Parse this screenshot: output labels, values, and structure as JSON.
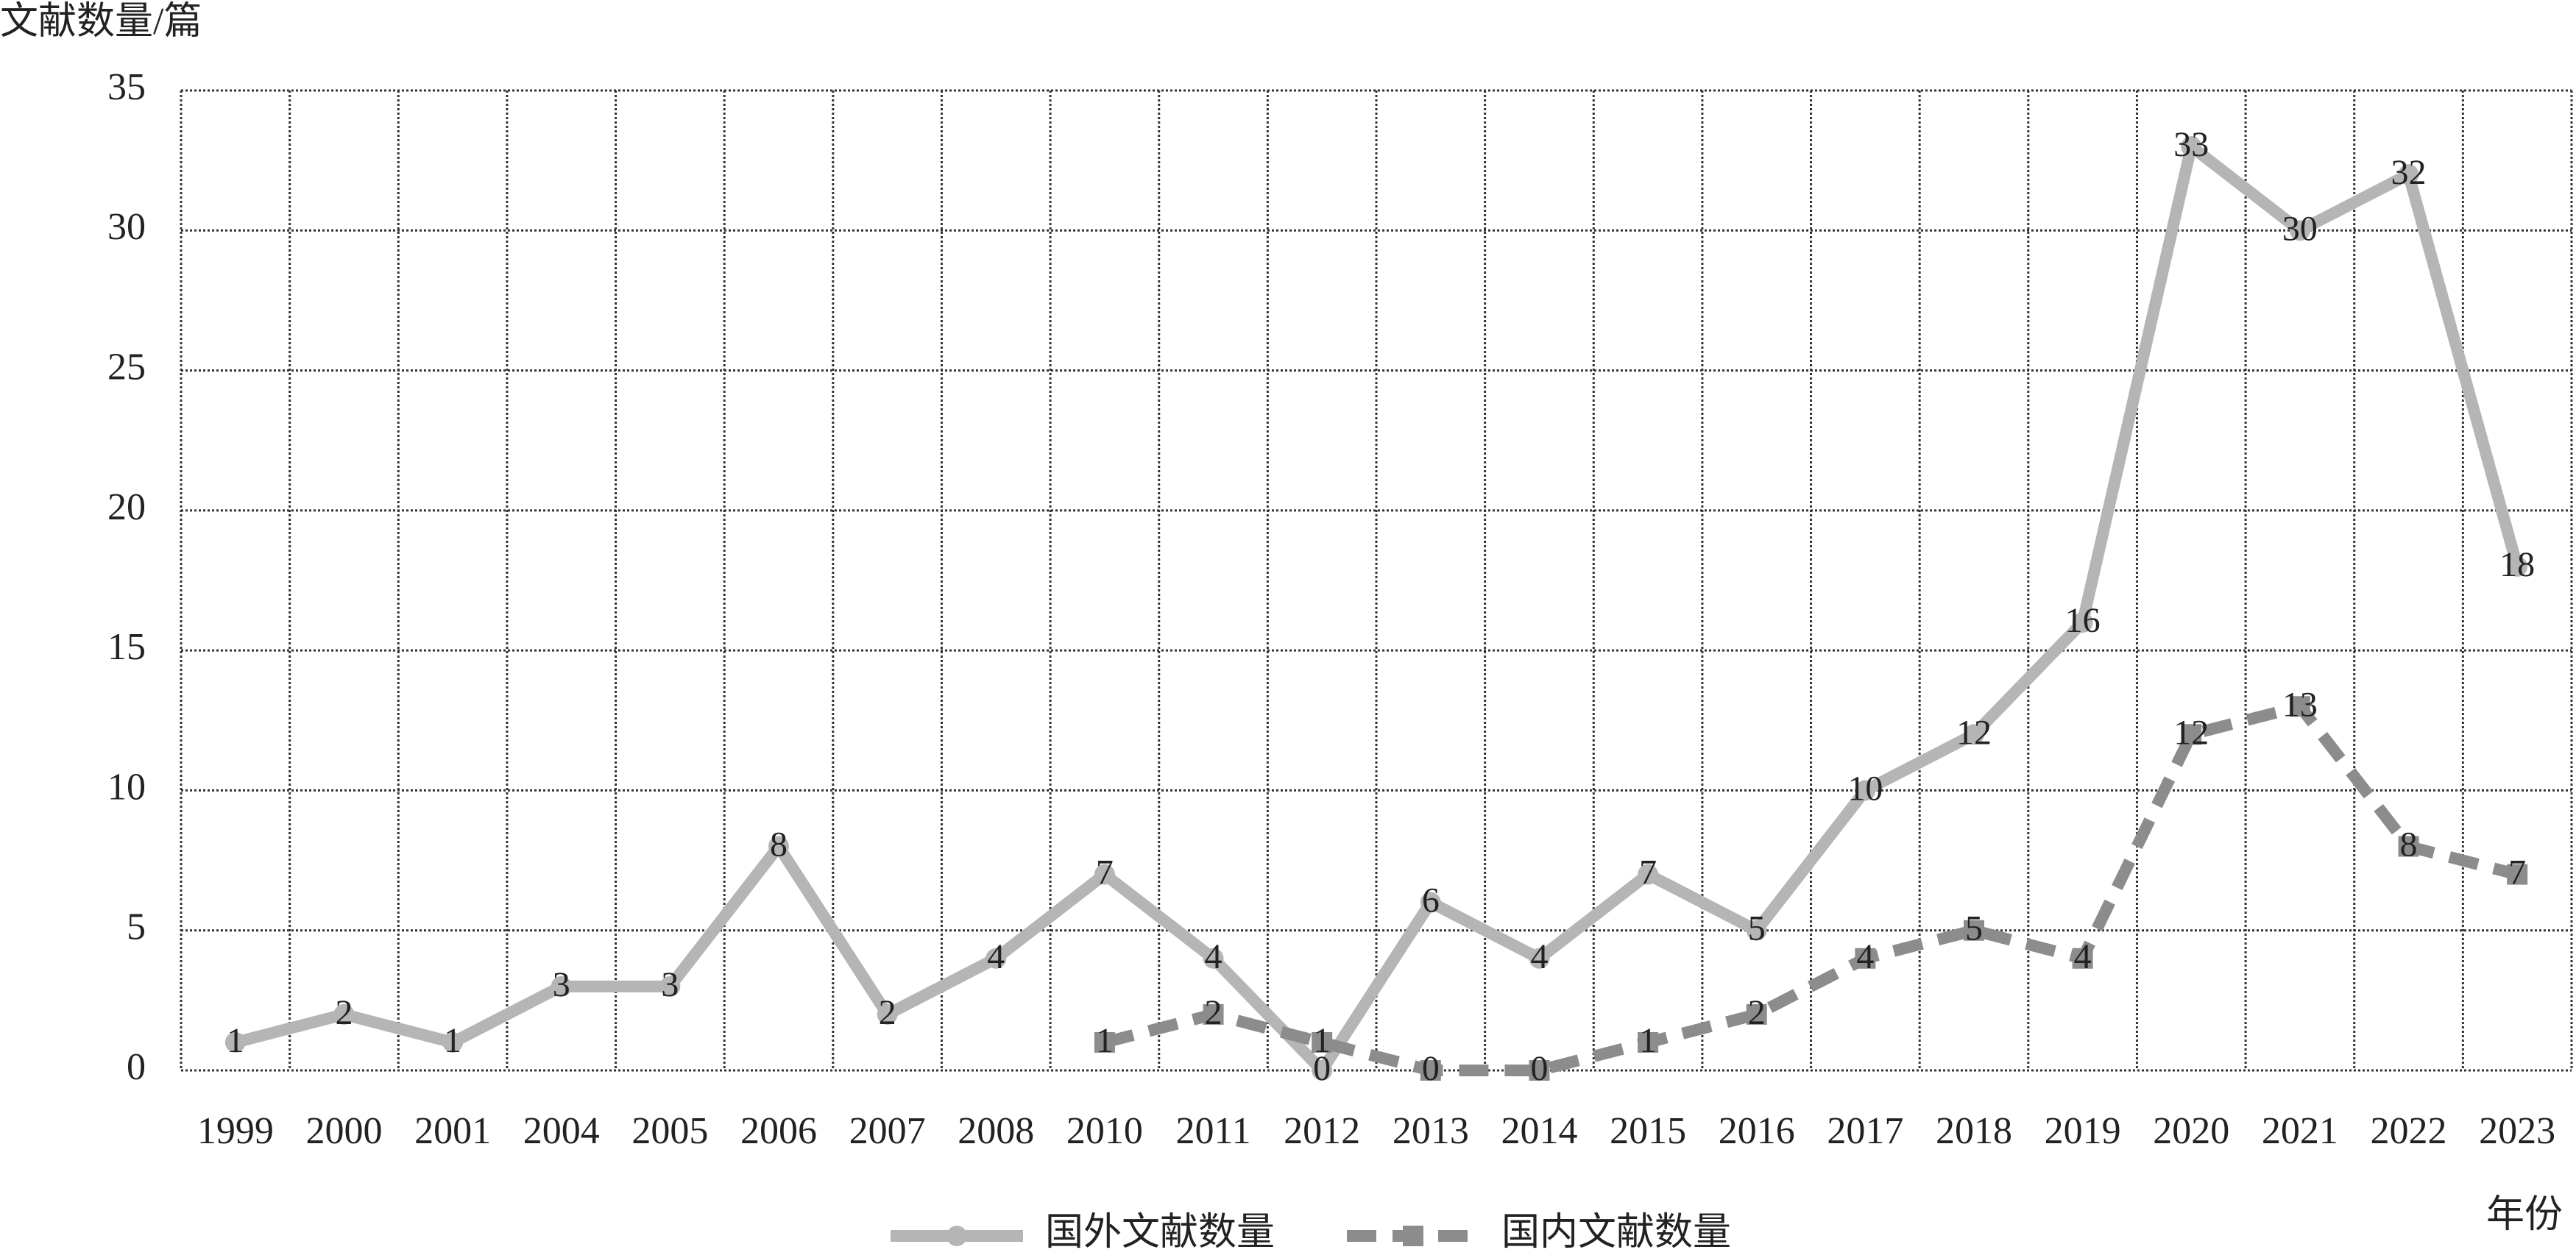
{
  "chart_data": {
    "type": "line",
    "y_label": "文献数量/篇",
    "x_label": "年份",
    "categories": [
      "1999",
      "2000",
      "2001",
      "2004",
      "2005",
      "2006",
      "2007",
      "2008",
      "2010",
      "2011",
      "2012",
      "2013",
      "2014",
      "2015",
      "2016",
      "2017",
      "2018",
      "2019",
      "2020",
      "2021",
      "2022",
      "2023"
    ],
    "series": [
      {
        "name": "国外文献数量",
        "color": "#b5b5b5",
        "marker": "circle",
        "dash": false,
        "values": [
          1,
          2,
          1,
          3,
          3,
          8,
          2,
          4,
          7,
          4,
          0,
          6,
          4,
          7,
          5,
          10,
          12,
          16,
          33,
          30,
          32,
          18
        ]
      },
      {
        "name": "国内文献数量",
        "color": "#8c8c8c",
        "marker": "square",
        "dash": true,
        "values": [
          null,
          null,
          null,
          null,
          null,
          null,
          null,
          null,
          1,
          2,
          1,
          0,
          0,
          1,
          2,
          4,
          5,
          4,
          12,
          13,
          8,
          7
        ]
      }
    ],
    "ylim": [
      0,
      35
    ],
    "yticks": [
      0,
      5,
      10,
      15,
      20,
      25,
      30,
      35
    ],
    "grid": true,
    "legend": "bottom"
  }
}
